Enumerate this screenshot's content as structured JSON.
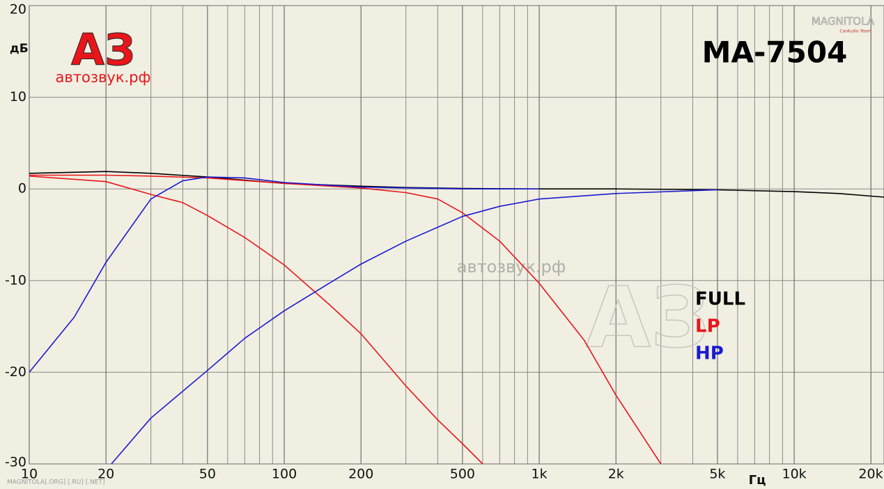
{
  "chart_data": {
    "type": "line",
    "title": "MA-7504",
    "y_label": "дБ",
    "x_label": "Гц",
    "logo": "АЗ",
    "logo_sub": "автозвук.рф",
    "watermark": "автозвук.рф",
    "legend_logo": "АЗ",
    "brand": "MAGNITOLA",
    "brand_sub": "CarAudio Team",
    "footer": "MAGNITOLA[.ORG] [.RU] [.NET]",
    "log_x": true,
    "grid": true,
    "xlim": [
      10,
      22500
    ],
    "ylim": [
      -30,
      20
    ],
    "yticks": [
      20,
      10,
      0,
      -10,
      -20,
      -30
    ],
    "xticks": [
      10,
      20,
      50,
      100,
      200,
      500,
      {
        "value": 1000,
        "label": "1k"
      },
      {
        "value": 2000,
        "label": "2k"
      },
      {
        "value": 5000,
        "label": "5k"
      },
      {
        "value": 10000,
        "label": "10k"
      },
      {
        "value": 20000,
        "label": "20k"
      }
    ],
    "xminor": [
      30,
      40,
      60,
      70,
      80,
      90,
      300,
      400,
      600,
      700,
      800,
      900,
      3000,
      4000,
      6000,
      7000,
      8000,
      9000
    ],
    "series": [
      {
        "name": "FULL",
        "color": "#000000",
        "curves": [
          {
            "x": [
              10,
              20,
              30,
              50,
              100,
              200,
              300,
              500,
              1000,
              2000,
              5000,
              10000,
              15000,
              22500
            ],
            "values": [
              1.7,
              1.9,
              1.7,
              1.3,
              0.6,
              0.3,
              0.15,
              0.05,
              0,
              0,
              -0.1,
              -0.3,
              -0.5,
              -0.9
            ]
          }
        ]
      },
      {
        "name": "LP",
        "color": "#e8161b",
        "curves": [
          {
            "x": [
              10,
              20,
              30,
              40,
              50,
              70,
              100,
              150,
              200,
              300,
              400,
              500,
              600
            ],
            "values": [
              1.4,
              0.8,
              -0.6,
              -1.5,
              -2.9,
              -5.3,
              -8.3,
              -12.6,
              -15.8,
              -21.5,
              -25.2,
              -27.8,
              -30
            ]
          },
          {
            "x": [
              10,
              20,
              30,
              50,
              100,
              200,
              300,
              400,
              500,
              700,
              1000,
              1500,
              2000,
              3000
            ],
            "values": [
              1.5,
              1.5,
              1.4,
              1.2,
              0.6,
              0.1,
              -0.4,
              -1.1,
              -2.6,
              -5.7,
              -10.3,
              -16.5,
              -22.5,
              -30
            ]
          }
        ]
      },
      {
        "name": "HP",
        "color": "#1a1ad0",
        "curves": [
          {
            "x": [
              10,
              15,
              20,
              30,
              40,
              50,
              70,
              100,
              200,
              500,
              1000
            ],
            "values": [
              -20,
              -14,
              -8,
              -1.1,
              0.9,
              1.3,
              1.2,
              0.7,
              0.2,
              0,
              0
            ]
          },
          {
            "x": [
              21,
              30,
              50,
              70,
              100,
              150,
              200,
              300,
              500,
              700,
              1000,
              2000,
              5000
            ],
            "values": [
              -30,
              -25,
              -19.8,
              -16.3,
              -13.3,
              -10.3,
              -8.2,
              -5.7,
              -3,
              -1.9,
              -1.1,
              -0.5,
              -0.1
            ]
          }
        ]
      }
    ]
  }
}
